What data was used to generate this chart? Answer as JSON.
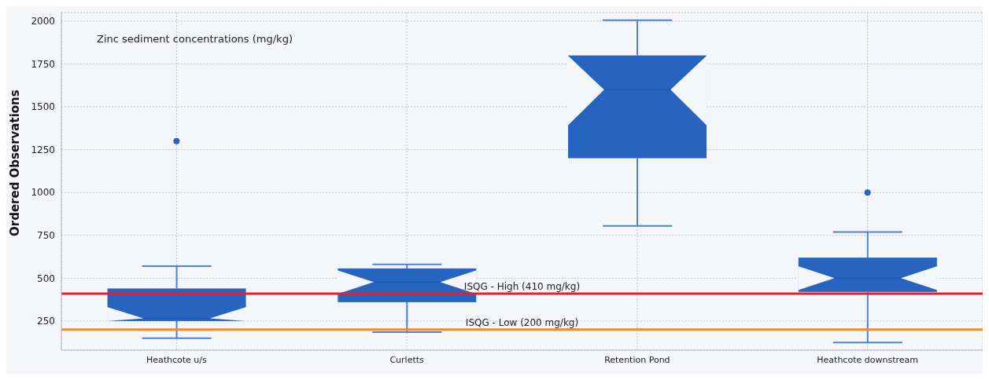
{
  "chart_data": {
    "type": "box",
    "title": "Zinc sediment concentrations (mg/kg)",
    "ylabel": "Ordered Observations",
    "categories": [
      "Heathcote u/s",
      "Curletts",
      "Retention Pond",
      "Heathcote downstream"
    ],
    "color": "#2764c0",
    "boxes": [
      {
        "low": 150,
        "q1": 250,
        "median": 265,
        "q3": 440,
        "high": 570,
        "outliers": [
          1300
        ]
      },
      {
        "low": 185,
        "q1": 360,
        "median": 477,
        "q3": 557,
        "high": 580
      },
      {
        "low": 805,
        "q1": 1200,
        "median": 1600,
        "q3": 1800,
        "high": 2005
      },
      {
        "low": 125,
        "q1": 420,
        "median": 500,
        "q3": 620,
        "high": 770,
        "outliers": [
          1000
        ]
      }
    ],
    "ylim": [
      80,
      2050
    ],
    "yticks": [
      250,
      500,
      750,
      1000,
      1250,
      1500,
      1750,
      2000
    ],
    "grid": true,
    "ref_lines": [
      {
        "axis": "y",
        "value": 410,
        "label": "ISQG - High (410 mg/kg)",
        "color": "#e8202a"
      },
      {
        "axis": "y",
        "value": 200,
        "label": "ISQG - Low (200 mg/kg)",
        "color": "#f5892e"
      }
    ]
  }
}
